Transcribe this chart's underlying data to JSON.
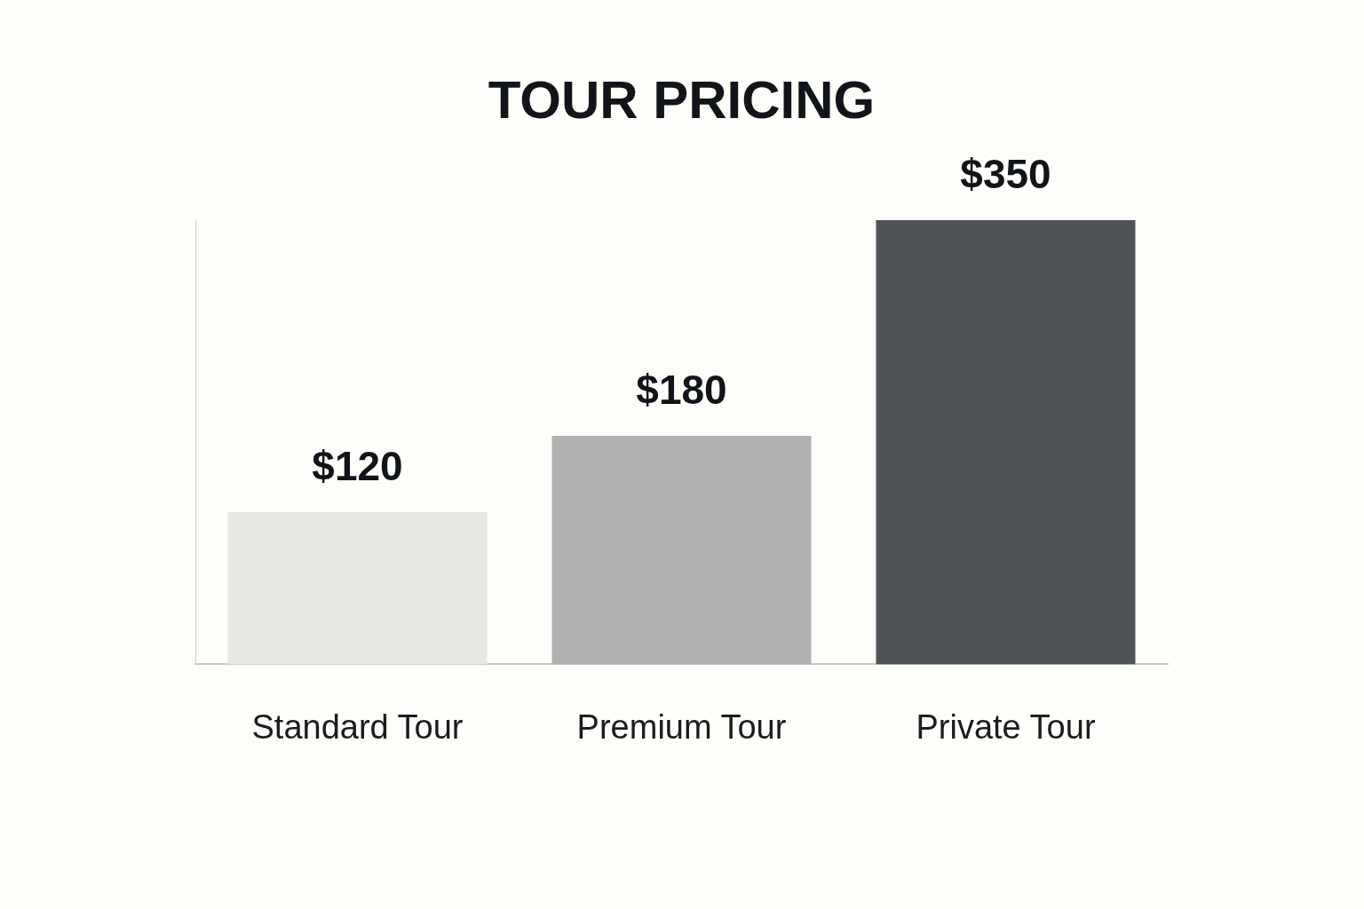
{
  "chart_data": {
    "type": "bar",
    "title": "TOUR PRICING",
    "categories": [
      "Standard Tour",
      "Premium Tour",
      "Private Tour"
    ],
    "values": [
      120,
      180,
      350
    ],
    "colors": [
      "#e9e8e5",
      "#b0b1b1",
      "#4f5358"
    ],
    "value_labels": [
      "$120",
      "$180",
      "$350"
    ],
    "grid": false
  }
}
